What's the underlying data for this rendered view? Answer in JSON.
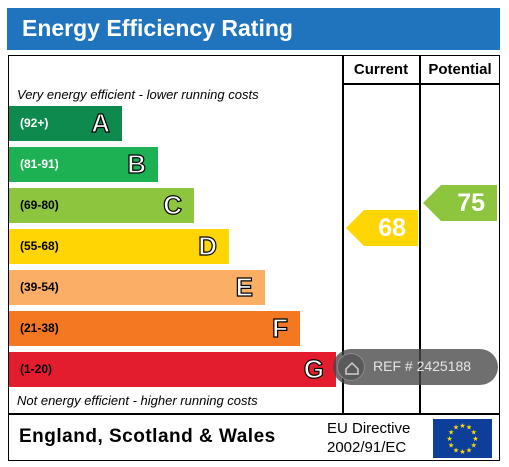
{
  "header": {
    "title": "Energy Efficiency Rating",
    "bg_color": "#1f74bd"
  },
  "columns": {
    "current": "Current",
    "potential": "Potential"
  },
  "captions": {
    "top": "Very energy efficient - lower running costs",
    "bottom": "Not energy efficient - higher running costs"
  },
  "bands": [
    {
      "range": "(92+)",
      "letter": "A",
      "color": "#0e8a4f"
    },
    {
      "range": "(81-91)",
      "letter": "B",
      "color": "#1eb153"
    },
    {
      "range": "(69-80)",
      "letter": "C",
      "color": "#8dc53f"
    },
    {
      "range": "(55-68)",
      "letter": "D",
      "color": "#ffd503"
    },
    {
      "range": "(39-54)",
      "letter": "E",
      "color": "#fbae65"
    },
    {
      "range": "(21-38)",
      "letter": "F",
      "color": "#f37821"
    },
    {
      "range": "(1-20)",
      "letter": "G",
      "color": "#e41d2e"
    }
  ],
  "ratings": {
    "current": {
      "value": "68",
      "color": "#ffd503"
    },
    "potential": {
      "value": "75",
      "color": "#8dc53f"
    }
  },
  "footer": {
    "country": "England, Scotland & Wales",
    "directive_line1": "EU Directive",
    "directive_line2": "2002/91/EC",
    "flag_color": "#0d3e9a",
    "star_color": "#ffdd00"
  },
  "watermark": {
    "text": "REF # 2425188",
    "icon": "home-icon"
  }
}
